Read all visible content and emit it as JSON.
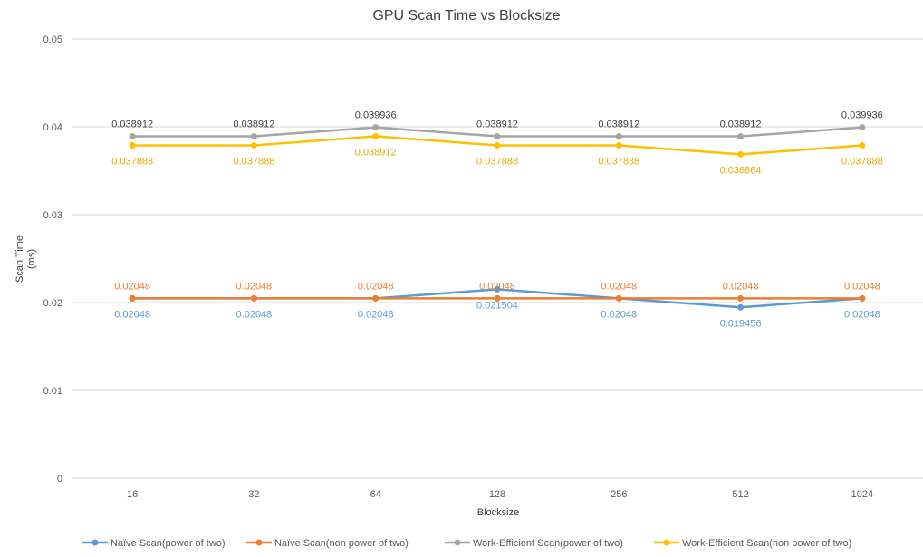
{
  "chart_data": {
    "type": "line",
    "title": "GPU Scan Time vs Blocksize",
    "xlabel": "Blocksize",
    "ylabel": "Scan Time (ms)",
    "categories": [
      "16",
      "32",
      "64",
      "128",
      "256",
      "512",
      "1024"
    ],
    "ylim": [
      0,
      0.05
    ],
    "yticks": [
      "0",
      "0.01",
      "0.02",
      "0.03",
      "0.04",
      "0.05"
    ],
    "grid": true,
    "legend_position": "bottom",
    "series": [
      {
        "name": "Naïve Scan(power of two)",
        "color": "#5b9bd5",
        "label_position": "below",
        "values": [
          0.02048,
          0.02048,
          0.02048,
          0.021504,
          0.02048,
          0.019456,
          0.02048
        ],
        "labels": [
          "0.02048",
          "0.02048",
          "0.02048",
          "0.021504",
          "0.02048",
          "0.019456",
          "0.02048"
        ]
      },
      {
        "name": "Naïve Scan(non power of two)",
        "color": "#ed7d31",
        "label_position": "above",
        "values": [
          0.02048,
          0.02048,
          0.02048,
          0.02048,
          0.02048,
          0.02048,
          0.02048
        ],
        "labels": [
          "0.02048",
          "0.02048",
          "0.02048",
          "0.02048",
          "0.02048",
          "0.02048",
          "0.02048"
        ]
      },
      {
        "name": "Work-Efficient Scan(power of two)",
        "color": "#a5a5a5",
        "label_color": "#404040",
        "label_position": "above",
        "values": [
          0.038912,
          0.038912,
          0.039936,
          0.038912,
          0.038912,
          0.038912,
          0.039936
        ],
        "labels": [
          "0.038912",
          "0.038912",
          "0.039936",
          "0.038912",
          "0.038912",
          "0.038912",
          "0.039936"
        ]
      },
      {
        "name": "Work-Efficient Scan(non power of two)",
        "color": "#ffc000",
        "label_color": "#e6ac00",
        "label_position": "below",
        "values": [
          0.037888,
          0.037888,
          0.038912,
          0.037888,
          0.037888,
          0.036864,
          0.037888
        ],
        "labels": [
          "0.037888",
          "0.037888",
          "0.038912",
          "0.037888",
          "0.037888",
          "0.036864",
          "0.037888"
        ]
      }
    ]
  }
}
